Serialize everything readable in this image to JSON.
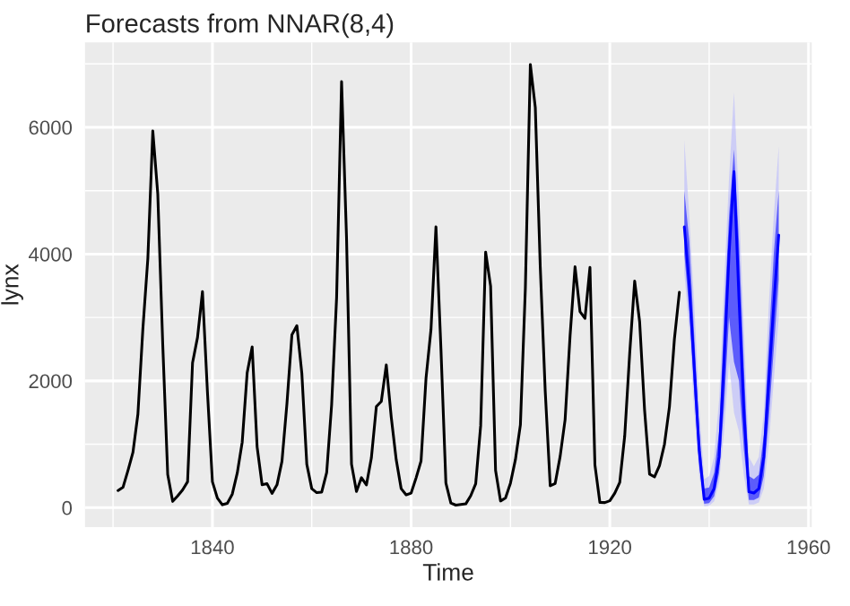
{
  "chart_data": {
    "type": "line",
    "title": "Forecasts from NNAR(8,4)",
    "xlabel": "Time",
    "ylabel": "lynx",
    "xlim": [
      1814.35,
      1960.65
    ],
    "xticks": [
      1840,
      1880,
      1920,
      1960
    ],
    "ylim": [
      -309,
      7339
    ],
    "yticks": [
      0,
      2000,
      4000,
      6000
    ],
    "grid": true,
    "legend": false,
    "series": [
      {
        "color": "#000000",
        "x": [
          1821,
          1822,
          1823,
          1824,
          1825,
          1826,
          1827,
          1828,
          1829,
          1830,
          1831,
          1832,
          1833,
          1834,
          1835,
          1836,
          1837,
          1838,
          1839,
          1840,
          1841,
          1842,
          1843,
          1844,
          1845,
          1846,
          1847,
          1848,
          1849,
          1850,
          1851,
          1852,
          1853,
          1854,
          1855,
          1856,
          1857,
          1858,
          1859,
          1860,
          1861,
          1862,
          1863,
          1864,
          1865,
          1866,
          1867,
          1868,
          1869,
          1870,
          1871,
          1872,
          1873,
          1874,
          1875,
          1876,
          1877,
          1878,
          1879,
          1880,
          1881,
          1882,
          1883,
          1884,
          1885,
          1886,
          1887,
          1888,
          1889,
          1890,
          1891,
          1892,
          1893,
          1894,
          1895,
          1896,
          1897,
          1898,
          1899,
          1900,
          1901,
          1902,
          1903,
          1904,
          1905,
          1906,
          1907,
          1908,
          1909,
          1910,
          1911,
          1912,
          1913,
          1914,
          1915,
          1916,
          1917,
          1918,
          1919,
          1920,
          1921,
          1922,
          1923,
          1924,
          1925,
          1926,
          1927,
          1928,
          1929,
          1930,
          1931,
          1932,
          1933,
          1934
        ],
        "values": [
          269,
          321,
          585,
          871,
          1475,
          2821,
          3928,
          5943,
          4950,
          2577,
          523,
          98,
          184,
          279,
          409,
          2285,
          2685,
          3409,
          1824,
          409,
          151,
          45,
          68,
          213,
          546,
          1033,
          2129,
          2536,
          957,
          361,
          377,
          225,
          360,
          731,
          1638,
          2725,
          2871,
          2119,
          684,
          299,
          236,
          245,
          552,
          1623,
          3311,
          6721,
          4254,
          687,
          255,
          473,
          358,
          784,
          1594,
          1676,
          2251,
          1426,
          756,
          299,
          201,
          229,
          469,
          736,
          2042,
          2811,
          4431,
          2511,
          389,
          73,
          39,
          49,
          59,
          188,
          377,
          1292,
          4031,
          3495,
          587,
          105,
          153,
          387,
          758,
          1307,
          3465,
          6991,
          6313,
          3794,
          1836,
          345,
          382,
          808,
          1388,
          2713,
          3800,
          3091,
          2985,
          3790,
          674,
          81,
          80,
          108,
          229,
          399,
          1132,
          2432,
          3574,
          2935,
          1537,
          529,
          485,
          662,
          1000,
          1590,
          2657,
          3396
        ]
      },
      {
        "color": "#b4b4ff",
        "x": [
          1935,
          1936,
          1937,
          1938,
          1939,
          1940,
          1941,
          1942,
          1943,
          1944,
          1945,
          1946,
          1947,
          1948,
          1949,
          1950,
          1951,
          1952,
          1953,
          1954
        ],
        "values": [
          null,
          null,
          null,
          null,
          null,
          null,
          null,
          null,
          null,
          null,
          null,
          null,
          null,
          null,
          null,
          null,
          null,
          null,
          null,
          null
        ],
        "lower": [
          3700,
          2800,
          1500,
          500,
          20,
          30,
          100,
          400,
          1200,
          2300,
          1500,
          1200,
          500,
          50,
          50,
          80,
          300,
          1000,
          2000,
          3000
        ],
        "upper": [
          5800,
          4600,
          3200,
          1600,
          450,
          500,
          800,
          1700,
          3500,
          5200,
          6550,
          4800,
          2800,
          800,
          650,
          800,
          1500,
          3200,
          4600,
          5700
        ]
      },
      {
        "color": "#0000ff",
        "x": [
          1935,
          1936,
          1937,
          1938,
          1939,
          1940,
          1941,
          1942,
          1943,
          1944,
          1945,
          1946,
          1947,
          1948,
          1949,
          1950,
          1951,
          1952,
          1953,
          1954
        ],
        "values": [
          4430,
          3500,
          2200,
          900,
          130,
          150,
          300,
          800,
          2300,
          4000,
          5300,
          3300,
          1500,
          250,
          230,
          300,
          800,
          2000,
          3200,
          4300
        ],
        "lower": [
          4000,
          3100,
          1800,
          650,
          60,
          70,
          180,
          550,
          1600,
          3000,
          2300,
          2000,
          900,
          120,
          120,
          160,
          500,
          1400,
          2500,
          3600
        ],
        "upper": [
          5000,
          4200,
          2700,
          1200,
          300,
          320,
          550,
          1200,
          3000,
          4600,
          5650,
          4200,
          2200,
          500,
          450,
          520,
          1150,
          2600,
          4000,
          5000
        ]
      }
    ]
  }
}
